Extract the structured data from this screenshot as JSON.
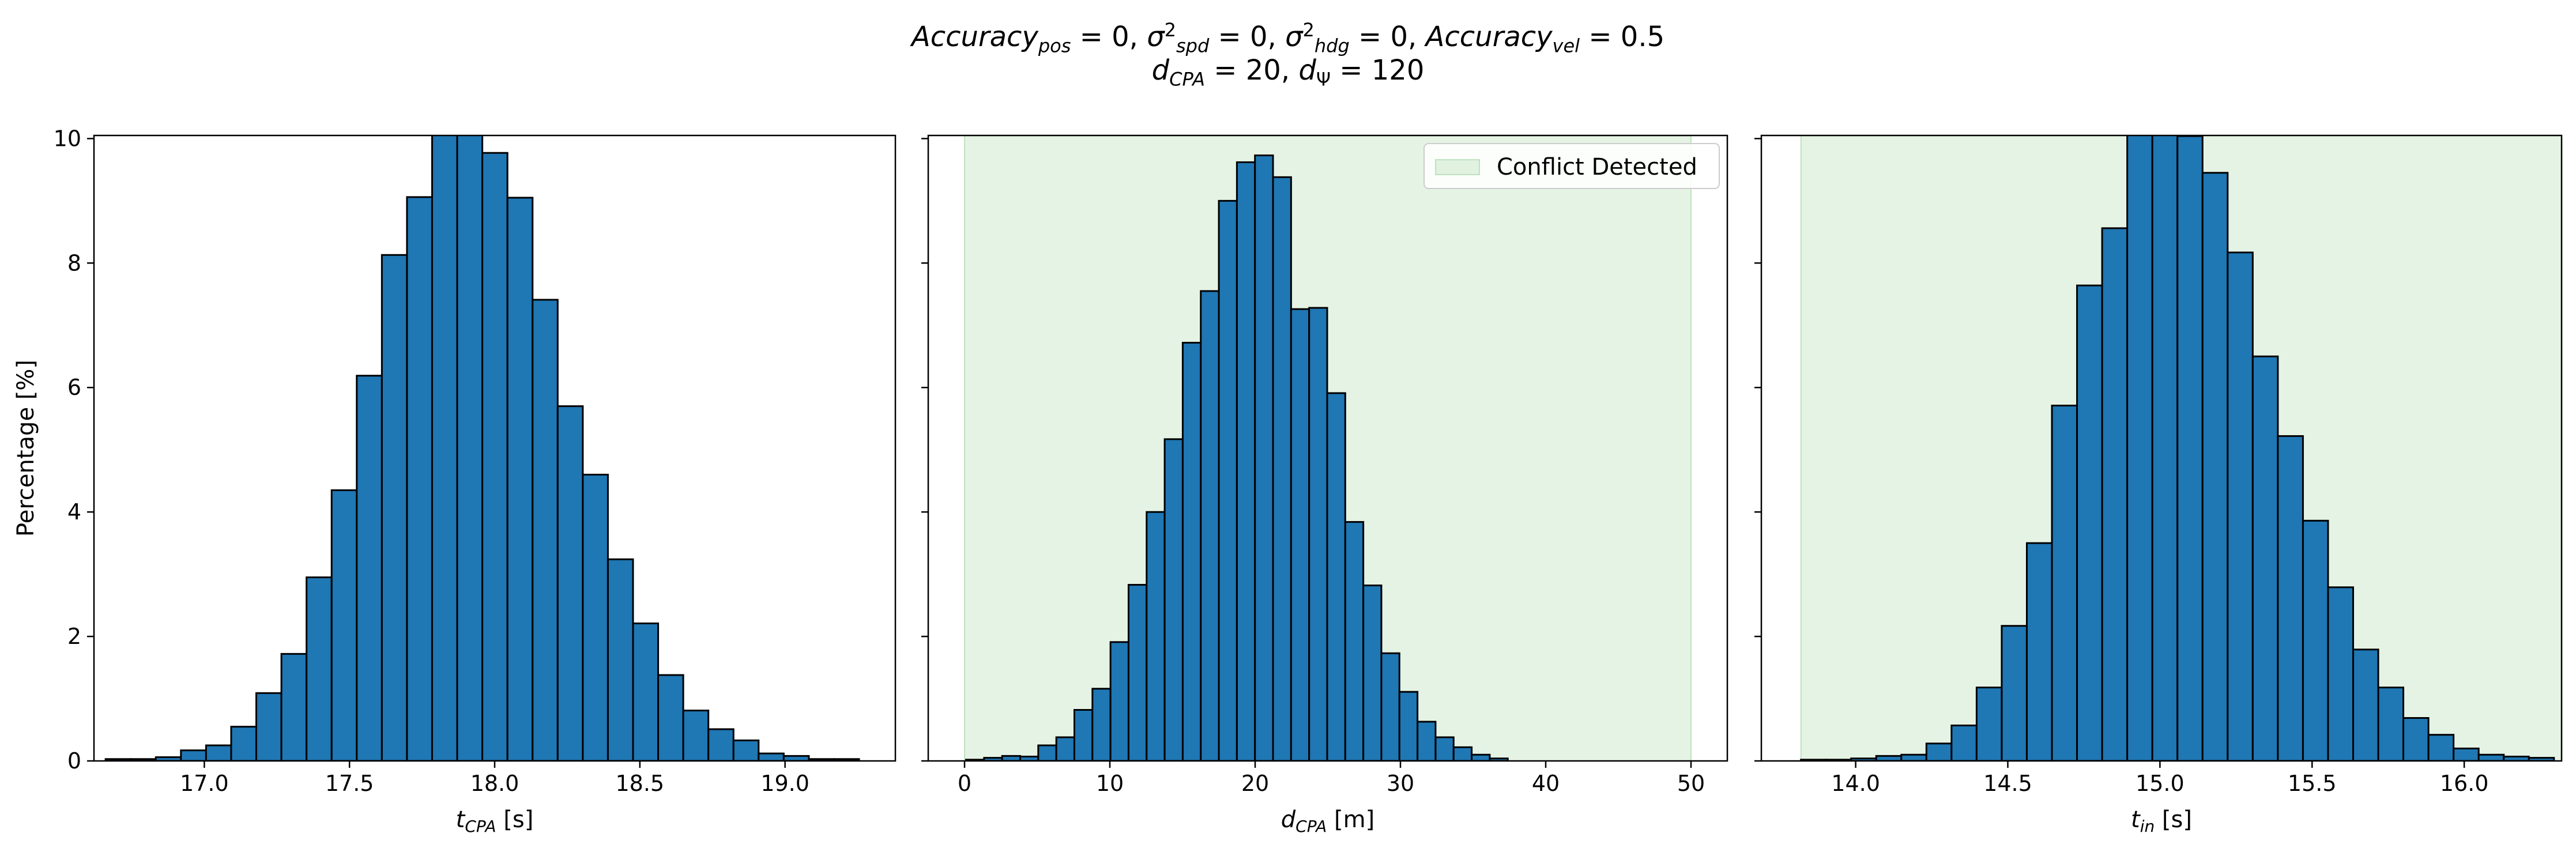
{
  "title": {
    "line1_parts": [
      {
        "text": "Accuracy",
        "italic": true
      },
      {
        "text": "pos",
        "sub": true,
        "italic": true
      },
      {
        "text": " = 0, "
      },
      {
        "text": "σ",
        "italic": true
      },
      {
        "text": "2",
        "sup": true
      },
      {
        "text": "spd",
        "sub": true,
        "italic": true
      },
      {
        "text": " = 0, "
      },
      {
        "text": "σ",
        "italic": true
      },
      {
        "text": "2",
        "sup": true
      },
      {
        "text": "hdg",
        "sub": true,
        "italic": true
      },
      {
        "text": " = 0, "
      },
      {
        "text": "Accuracy",
        "italic": true
      },
      {
        "text": "vel",
        "sub": true,
        "italic": true
      },
      {
        "text": " = 0.5"
      }
    ],
    "line2_parts": [
      {
        "text": "d",
        "italic": true
      },
      {
        "text": "CPA",
        "sub": true,
        "italic": true
      },
      {
        "text": " = 20, "
      },
      {
        "text": "d",
        "italic": true
      },
      {
        "text": "Ψ",
        "sub": true
      },
      {
        "text": " = 120"
      }
    ]
  },
  "chart_data": [
    {
      "type": "bar",
      "xlabel": {
        "main": "t",
        "sub": "CPA",
        "unit": " [s]"
      },
      "ylabel": "Percentage [%]",
      "xlim": [
        16.62,
        19.38
      ],
      "ylim": [
        0,
        10.05
      ],
      "xticks": [
        17.0,
        17.5,
        18.0,
        18.5,
        19.0
      ],
      "xtick_labels": [
        "17.0",
        "17.5",
        "18.0",
        "18.5",
        "19.0"
      ],
      "yticks": [
        0,
        2,
        4,
        6,
        8,
        10
      ],
      "ytick_labels": [
        "0",
        "2",
        "4",
        "6",
        "8",
        "10"
      ],
      "bin_start": 16.66,
      "bin_width": 0.0865,
      "values": [
        0.03,
        0.03,
        0.06,
        0.17,
        0.25,
        0.55,
        1.09,
        1.72,
        2.95,
        4.35,
        6.19,
        8.13,
        9.06,
        10.07,
        10.07,
        9.77,
        9.05,
        7.41,
        5.7,
        4.6,
        3.24,
        2.21,
        1.38,
        0.81,
        0.51,
        0.33,
        0.12,
        0.08,
        0.03,
        0.03
      ],
      "bar_color": "#1f77b4",
      "shaded_region": null,
      "legend": null
    },
    {
      "type": "bar",
      "xlabel": {
        "main": "d",
        "sub": "CPA",
        "unit": " [m]"
      },
      "ylabel": "",
      "xlim": [
        -2.5,
        52.5
      ],
      "ylim": [
        0,
        10.05
      ],
      "xticks": [
        0,
        10,
        20,
        30,
        40,
        50
      ],
      "xtick_labels": [
        "0",
        "10",
        "20",
        "30",
        "40",
        "50"
      ],
      "yticks": [
        0,
        2,
        4,
        6,
        8,
        10
      ],
      "ytick_labels": [],
      "bin_start": 0.1,
      "bin_width": 1.243,
      "values": [
        0.02,
        0.05,
        0.08,
        0.07,
        0.25,
        0.38,
        0.82,
        1.16,
        1.91,
        2.83,
        4.0,
        5.17,
        6.72,
        7.55,
        9.0,
        9.62,
        9.73,
        9.38,
        7.26,
        7.28,
        5.91,
        3.84,
        2.82,
        1.73,
        1.11,
        0.63,
        0.38,
        0.22,
        0.1,
        0.04
      ],
      "bar_color": "#1f77b4",
      "shaded_region": {
        "x0": 0,
        "x1": 50,
        "color": "#2ca02c",
        "opacity": 0.12
      },
      "legend": {
        "label": "Conflict Detected",
        "location": "upper-right"
      }
    },
    {
      "type": "bar",
      "xlabel": {
        "main": "t",
        "sub": "in",
        "unit": " [s]"
      },
      "ylabel": "",
      "xlim": [
        13.69,
        16.32
      ],
      "ylim": [
        0,
        10.05
      ],
      "xticks": [
        14.0,
        14.5,
        15.0,
        15.5,
        16.0
      ],
      "xtick_labels": [
        "14.0",
        "14.5",
        "15.0",
        "15.5",
        "16.0"
      ],
      "yticks": [
        0,
        2,
        4,
        6,
        8,
        10
      ],
      "ytick_labels": [],
      "bin_start": 13.82,
      "bin_width": 0.0825,
      "values": [
        0.02,
        0.02,
        0.04,
        0.08,
        0.1,
        0.28,
        0.57,
        1.18,
        2.17,
        3.5,
        5.71,
        7.64,
        8.56,
        10.07,
        10.07,
        10.04,
        9.45,
        8.17,
        6.5,
        5.22,
        3.86,
        2.79,
        1.79,
        1.18,
        0.69,
        0.42,
        0.2,
        0.1,
        0.07,
        0.05
      ],
      "bar_color": "#1f77b4",
      "shaded_region": {
        "x0": 13.82,
        "x1": 16.32,
        "color": "#2ca02c",
        "opacity": 0.12
      },
      "legend": null
    }
  ]
}
